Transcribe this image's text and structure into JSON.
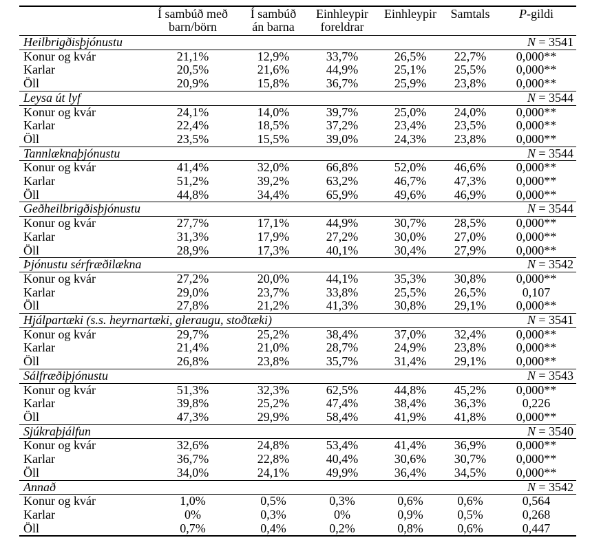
{
  "page": {
    "background": "#ffffff",
    "text_color": "#000000",
    "rule_color": "#000000"
  },
  "table": {
    "header": {
      "columns": [
        "Í sambúð með\nbarn/börn",
        "Í sambúð\nán barna",
        "Einhleypir\nforeldrar",
        "Einhleypir",
        "Samtals"
      ],
      "p_column": {
        "italic": "P",
        "rest": "-gildi"
      }
    },
    "sections": [
      {
        "title": "Heilbrigðisþjónustu",
        "n_label": {
          "italic": "N",
          "rest": " = 3541"
        },
        "rows": [
          {
            "label": "Konur og kvár",
            "values": [
              "21,1%",
              "12,9%",
              "33,7%",
              "26,5%",
              "22,7%",
              "0,000**"
            ]
          },
          {
            "label": "Karlar",
            "values": [
              "20,5%",
              "21,6%",
              "44,9%",
              "25,1%",
              "25,5%",
              "0,000**"
            ]
          },
          {
            "label": "Öll",
            "values": [
              "20,9%",
              "15,8%",
              "36,7%",
              "25,9%",
              "23,8%",
              "0,000**"
            ]
          }
        ]
      },
      {
        "title": "Leysa út lyf",
        "n_label": {
          "italic": "N",
          "rest": " = 3544"
        },
        "rows": [
          {
            "label": "Konur og kvár",
            "values": [
              "24,1%",
              "14,0%",
              "39,7%",
              "25,0%",
              "24,0%",
              "0,000**"
            ]
          },
          {
            "label": "Karlar",
            "values": [
              "22,4%",
              "18,5%",
              "37,2%",
              "23,4%",
              "23,5%",
              "0,000**"
            ]
          },
          {
            "label": "Öll",
            "values": [
              "23,5%",
              "15,5%",
              "39,0%",
              "24,3%",
              "23,8%",
              "0,000**"
            ]
          }
        ]
      },
      {
        "title": "Tannlæknaþjónustu",
        "n_label": {
          "italic": "N",
          "rest": " = 3544"
        },
        "rows": [
          {
            "label": "Konur og kvár",
            "values": [
              "41,4%",
              "32,0%",
              "66,8%",
              "52,0%",
              "46,6%",
              "0,000**"
            ]
          },
          {
            "label": "Karlar",
            "values": [
              "51,2%",
              "39,2%",
              "63,2%",
              "46,7%",
              "47,3%",
              "0,000**"
            ]
          },
          {
            "label": "Öll",
            "values": [
              "44,8%",
              "34,4%",
              "65,9%",
              "49,6%",
              "46,9%",
              "0,000**"
            ]
          }
        ]
      },
      {
        "title": "Geðheilbrigðisþjónustu",
        "n_label": {
          "italic": "N",
          "rest": " = 3544"
        },
        "rows": [
          {
            "label": "Konur og kvár",
            "values": [
              "27,7%",
              "17,1%",
              "44,9%",
              "30,7%",
              "28,5%",
              "0,000**"
            ]
          },
          {
            "label": "Karlar",
            "values": [
              "31,3%",
              "17,9%",
              "27,2%",
              "30,0%",
              "27,0%",
              "0,000**"
            ]
          },
          {
            "label": "Öll",
            "values": [
              "28,9%",
              "17,3%",
              "40,1%",
              "30,4%",
              "27,9%",
              "0,000**"
            ]
          }
        ]
      },
      {
        "title": "Þjónustu sérfræðilækna",
        "n_label": {
          "italic": "N",
          "rest": " = 3542"
        },
        "rows": [
          {
            "label": "Konur og kvár",
            "values": [
              "27,2%",
              "20,0%",
              "44,1%",
              "35,3%",
              "30,8%",
              "0,000**"
            ]
          },
          {
            "label": "Karlar",
            "values": [
              "29,0%",
              "23,7%",
              "33,8%",
              "25,5%",
              "26,5%",
              "0,107"
            ]
          },
          {
            "label": "Öll",
            "values": [
              "27,8%",
              "21,2%",
              "41,3%",
              "30,8%",
              "29,1%",
              "0,000**"
            ]
          }
        ]
      },
      {
        "title": "Hjálpartæki (s.s. heyrnartæki, gleraugu, stoðtæki)",
        "n_label": {
          "italic": "N",
          "rest": " = 3541"
        },
        "rows": [
          {
            "label": "Konur og kvár",
            "values": [
              "29,7%",
              "25,2%",
              "38,4%",
              "37,0%",
              "32,4%",
              "0,000**"
            ]
          },
          {
            "label": "Karlar",
            "values": [
              "21,4%",
              "21,0%",
              "28,7%",
              "24,9%",
              "23,8%",
              "0,000**"
            ]
          },
          {
            "label": "Öll",
            "values": [
              "26,8%",
              "23,8%",
              "35,7%",
              "31,4%",
              "29,1%",
              "0,000**"
            ]
          }
        ]
      },
      {
        "title": "Sálfræðiþjónustu",
        "n_label": {
          "italic": "N",
          "rest": " = 3543"
        },
        "rows": [
          {
            "label": "Konur og kvár",
            "values": [
              "51,3%",
              "32,3%",
              "62,5%",
              "44,8%",
              "45,2%",
              "0,000**"
            ]
          },
          {
            "label": "Karlar",
            "values": [
              "39,8%",
              "25,2%",
              "47,4%",
              "38,4%",
              "36,3%",
              "0,226"
            ]
          },
          {
            "label": "Öll",
            "values": [
              "47,3%",
              "29,9%",
              "58,4%",
              "41,9%",
              "41,8%",
              "0,000**"
            ]
          }
        ]
      },
      {
        "title": "Sjúkraþjálfun",
        "n_label": {
          "italic": "N",
          "rest": " = 3540"
        },
        "rows": [
          {
            "label": "Konur og kvár",
            "values": [
              "32,6%",
              "24,8%",
              "53,4%",
              "41,4%",
              "36,9%",
              "0,000**"
            ]
          },
          {
            "label": "Karlar",
            "values": [
              "36,7%",
              "22,8%",
              "40,4%",
              "30,6%",
              "30,7%",
              "0,000**"
            ]
          },
          {
            "label": "Öll",
            "values": [
              "34,0%",
              "24,1%",
              "49,9%",
              "36,4%",
              "34,5%",
              "0,000**"
            ]
          }
        ]
      },
      {
        "title": "Annað",
        "n_label": {
          "italic": "N",
          "rest": " = 3542"
        },
        "rows": [
          {
            "label": "Konur og kvár",
            "values": [
              "1,0%",
              "0,5%",
              "0,3%",
              "0,6%",
              "0,6%",
              "0,564"
            ]
          },
          {
            "label": "Karlar",
            "values": [
              "0%",
              "0,3%",
              "0%",
              "0,9%",
              "0,5%",
              "0,268"
            ]
          },
          {
            "label": "Öll",
            "values": [
              "0,7%",
              "0,4%",
              "0,2%",
              "0,8%",
              "0,6%",
              "0,447"
            ]
          }
        ]
      }
    ]
  }
}
